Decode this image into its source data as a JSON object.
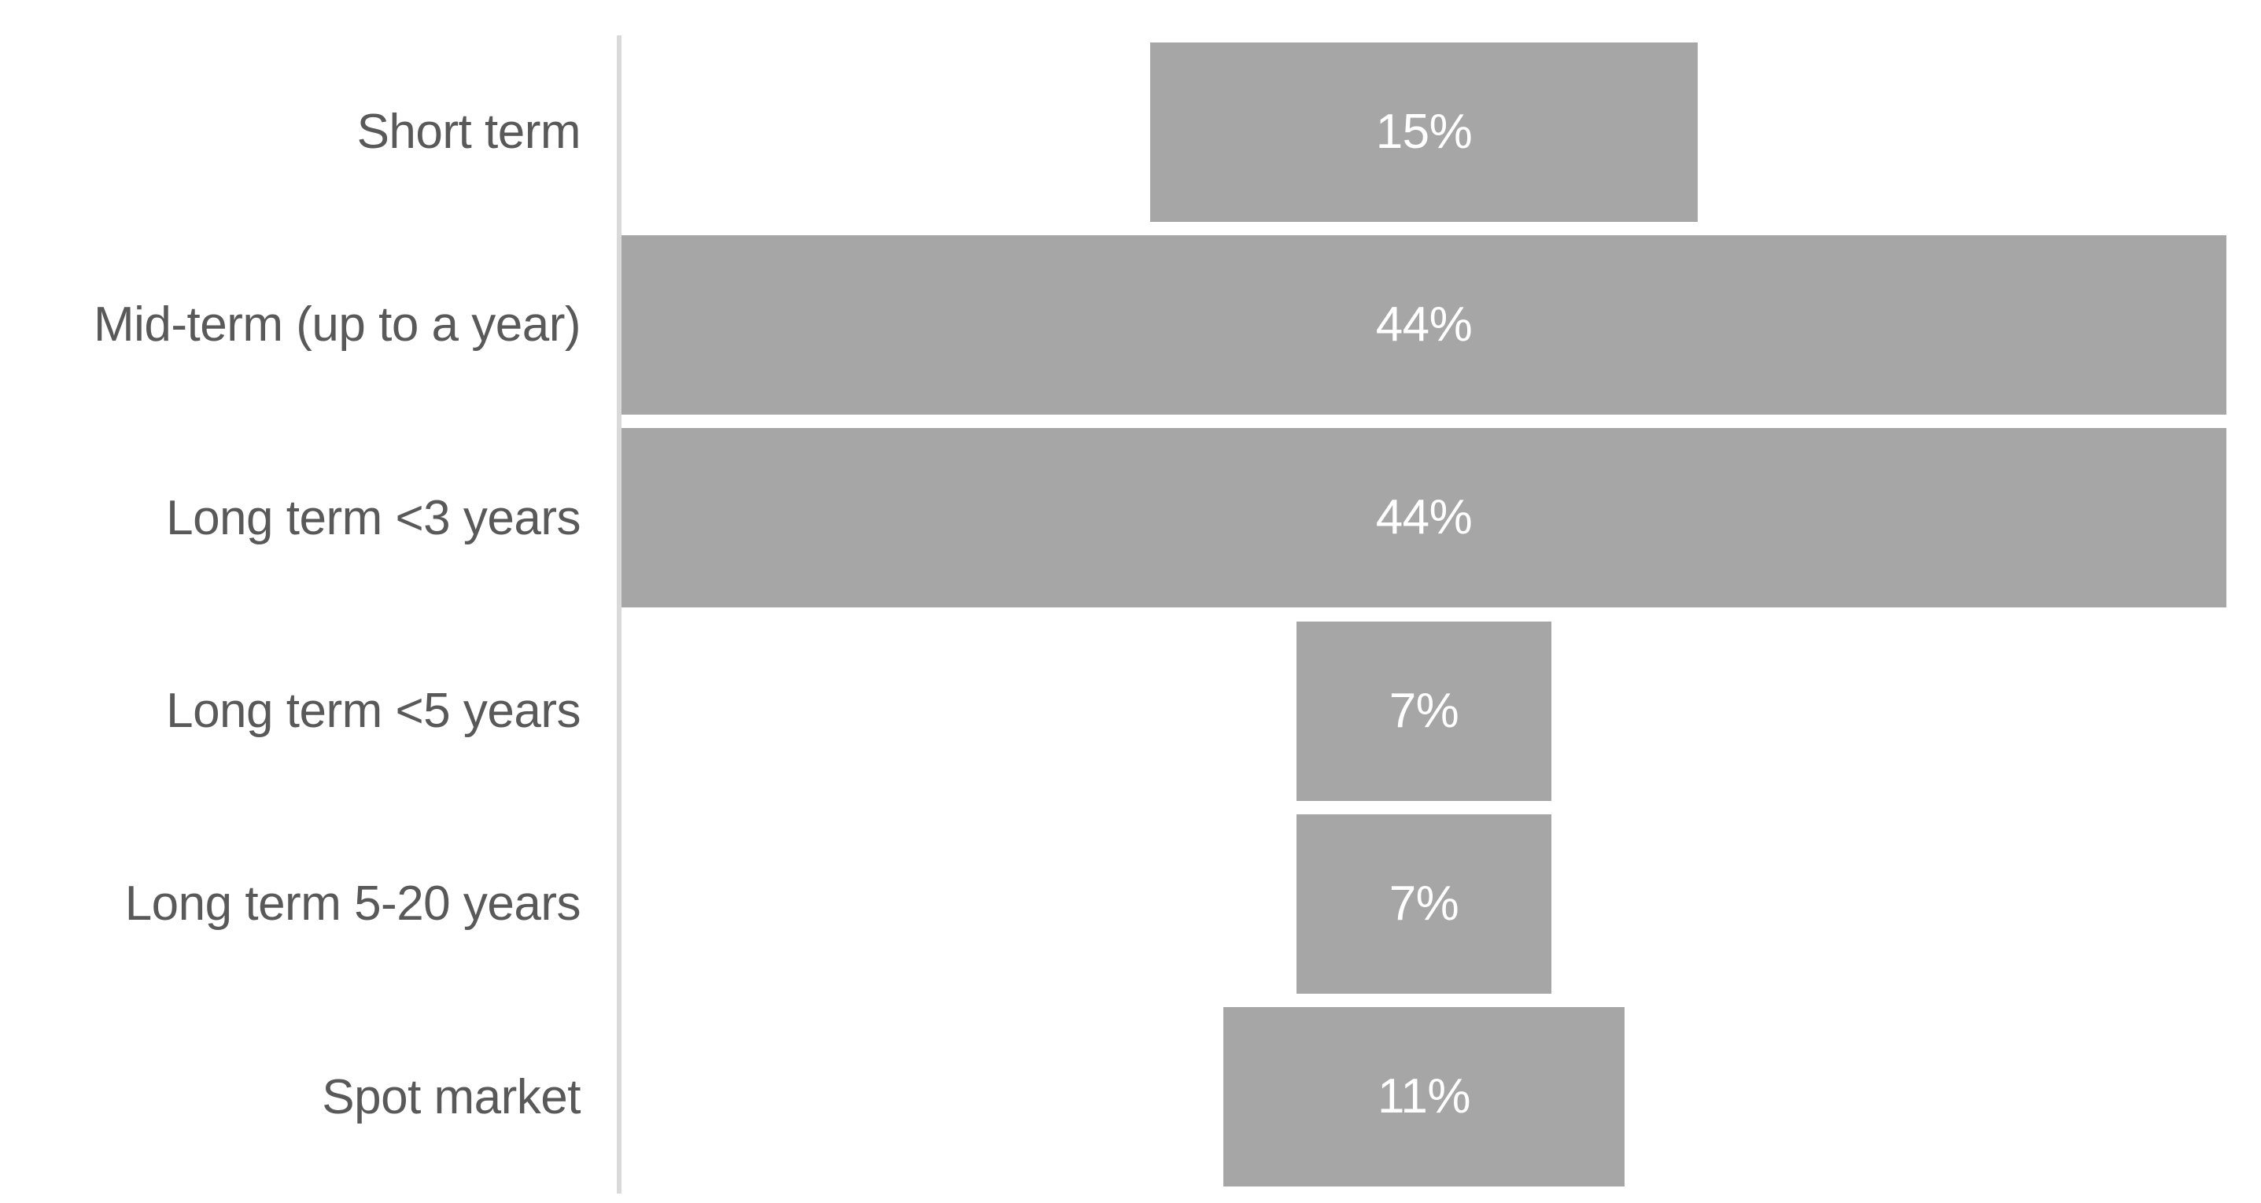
{
  "chart_data": {
    "type": "bar",
    "subtype": "horizontal-centered-funnel",
    "title": "",
    "xlabel": "",
    "ylabel": "",
    "categories": [
      "Short term",
      "Mid-term (up to a year)",
      "Long term <3 years",
      "Long term <5 years",
      "Long term 5-20 years",
      "Spot market"
    ],
    "values": [
      15,
      44,
      44,
      7,
      7,
      11
    ],
    "value_labels": [
      "15%",
      "44%",
      "44%",
      "7%",
      "7%",
      "11%"
    ],
    "value_scale_max": 44,
    "grid": false,
    "legend": false,
    "axis_line": "vertical-left",
    "colors": {
      "bar_fill": "#a6a6a6",
      "value_label": "#ffffff",
      "category_label": "#595959",
      "axis_line": "#d9d9d9",
      "background": "#ffffff"
    }
  }
}
